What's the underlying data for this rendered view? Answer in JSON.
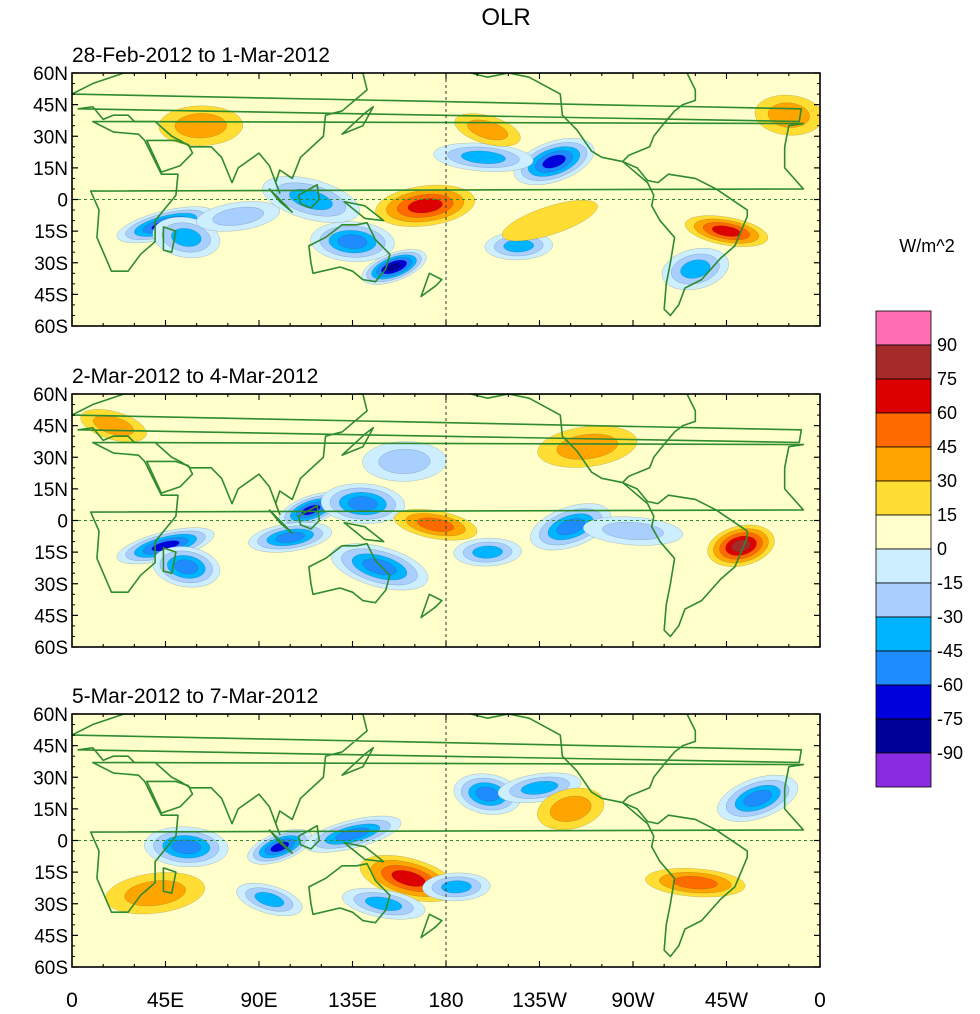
{
  "title": "OLR",
  "panels": [
    {
      "label": "28-Feb-2012 to 1-Mar-2012"
    },
    {
      "label": "2-Mar-2012 to 4-Mar-2012"
    },
    {
      "label": "5-Mar-2012 to 7-Mar-2012"
    }
  ],
  "lat_labels": [
    "60N",
    "45N",
    "30N",
    "15N",
    "0",
    "15S",
    "30S",
    "45S",
    "60S"
  ],
  "lon_labels": [
    "0",
    "45E",
    "90E",
    "135E",
    "180",
    "135W",
    "90W",
    "45W",
    "0"
  ],
  "colorbar": {
    "units": "W/m^2",
    "levels": [
      "90",
      "75",
      "60",
      "45",
      "30",
      "15",
      "0",
      "-15",
      "-30",
      "-45",
      "-60",
      "-75",
      "-90"
    ],
    "colors": [
      "#ff6eb4",
      "#a52a2a",
      "#dd0000",
      "#ff6a00",
      "#ffa500",
      "#ffdd33",
      "#ffffcc",
      "#cceeff",
      "#a9cfff",
      "#00b4ff",
      "#1e8cff",
      "#0000dd",
      "#000099",
      "#8a2be2"
    ]
  },
  "colors": {
    "coast": "#2e8b2e",
    "positive_light": "#ffffcc",
    "border": "#2e8b2e"
  },
  "chart_data": {
    "type": "heatmap",
    "variable": "OLR anomaly",
    "units": "W/m^2",
    "contour_levels": [
      -90,
      -75,
      -60,
      -45,
      -30,
      -15,
      0,
      15,
      30,
      45,
      60,
      75,
      90
    ],
    "lat_range": [
      -60,
      60
    ],
    "lon_range": [
      0,
      360
    ],
    "panel_periods": [
      "28-Feb-2012 to 1-Mar-2012",
      "2-Mar-2012 to 4-Mar-2012",
      "5-Mar-2012 to 7-Mar-2012"
    ],
    "features": [
      [
        {
          "lon": 155,
          "lat": -32,
          "value": -90
        },
        {
          "lon": 135,
          "lat": -20,
          "value": -60
        },
        {
          "lon": 45,
          "lat": -12,
          "value": -75
        },
        {
          "lon": 55,
          "lat": -18,
          "value": -45
        },
        {
          "lon": 80,
          "lat": -8,
          "value": -30
        },
        {
          "lon": 115,
          "lat": 0,
          "value": -45
        },
        {
          "lon": 215,
          "lat": -22,
          "value": -45
        },
        {
          "lon": 232,
          "lat": 18,
          "value": -75
        },
        {
          "lon": 198,
          "lat": 20,
          "value": -45
        },
        {
          "lon": 300,
          "lat": -33,
          "value": -45
        },
        {
          "lon": 315,
          "lat": -15,
          "value": 60
        },
        {
          "lon": 170,
          "lat": -3,
          "value": 60
        },
        {
          "lon": 200,
          "lat": 33,
          "value": 30
        },
        {
          "lon": 62,
          "lat": 35,
          "value": 30
        },
        {
          "lon": 230,
          "lat": -10,
          "value": 15
        },
        {
          "lon": 345,
          "lat": 40,
          "value": 30
        }
      ],
      [
        {
          "lon": 115,
          "lat": 5,
          "value": -75
        },
        {
          "lon": 140,
          "lat": 8,
          "value": -60
        },
        {
          "lon": 45,
          "lat": -12,
          "value": -75
        },
        {
          "lon": 55,
          "lat": -22,
          "value": -60
        },
        {
          "lon": 105,
          "lat": -8,
          "value": -60
        },
        {
          "lon": 148,
          "lat": -22,
          "value": -60
        },
        {
          "lon": 200,
          "lat": -15,
          "value": -45
        },
        {
          "lon": 240,
          "lat": -3,
          "value": -60
        },
        {
          "lon": 270,
          "lat": -5,
          "value": -30
        },
        {
          "lon": 322,
          "lat": -12,
          "value": 75
        },
        {
          "lon": 175,
          "lat": -2,
          "value": 45
        },
        {
          "lon": 248,
          "lat": 35,
          "value": 30
        },
        {
          "lon": 20,
          "lat": 45,
          "value": 30
        },
        {
          "lon": 160,
          "lat": 28,
          "value": -30
        }
      ],
      [
        {
          "lon": 100,
          "lat": -3,
          "value": -75
        },
        {
          "lon": 55,
          "lat": -3,
          "value": -60
        },
        {
          "lon": 135,
          "lat": 3,
          "value": -60
        },
        {
          "lon": 200,
          "lat": 22,
          "value": -60
        },
        {
          "lon": 225,
          "lat": 25,
          "value": -45
        },
        {
          "lon": 162,
          "lat": -18,
          "value": 60
        },
        {
          "lon": 185,
          "lat": -22,
          "value": -45
        },
        {
          "lon": 330,
          "lat": 20,
          "value": -60
        },
        {
          "lon": 300,
          "lat": -20,
          "value": 45
        },
        {
          "lon": 240,
          "lat": 15,
          "value": 30
        },
        {
          "lon": 150,
          "lat": -30,
          "value": -45
        },
        {
          "lon": 40,
          "lat": -25,
          "value": 30
        },
        {
          "lon": 95,
          "lat": -28,
          "value": -45
        }
      ]
    ]
  }
}
